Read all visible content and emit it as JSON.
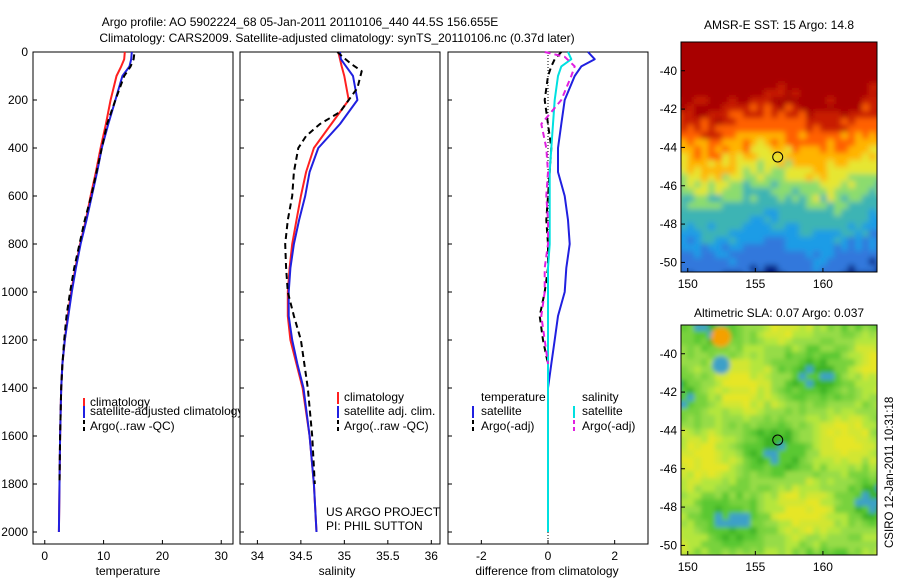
{
  "title_line1": "Argo profile: AO 5902224_68 05-Jan-2011 20110106_440 44.5S 156.655E",
  "title_line2": "Climatology: CARS2009. Satellite-adjusted climatology: synTS_20110106.nc (0.37d later)",
  "credit": "CSIRO 12-Jan-2011 10:31:18",
  "project_note": [
    "US ARGO PROJECT",
    "PI: PHIL SUTTON"
  ],
  "colors": {
    "climatology": "#ff2020",
    "satellite": "#2020e0",
    "argo": "#000000",
    "satellite_sal": "#00e0e0",
    "argo_sal": "#e020e0"
  },
  "chart_data": [
    {
      "type": "line",
      "xlabel": "temperature",
      "ylabel": "",
      "xlim": [
        -2,
        32
      ],
      "ylim": [
        2050,
        0
      ],
      "xticks": [
        0,
        10,
        20,
        30
      ],
      "yticks": [
        0,
        200,
        400,
        600,
        800,
        1000,
        1200,
        1400,
        1600,
        1800,
        2000
      ],
      "legend": [
        "climatology",
        "satellite-adjusted climatology",
        "Argo(..raw -QC)"
      ],
      "legend_position": "lower-right",
      "series": [
        {
          "name": "climatology",
          "color": "#ff2020",
          "style": "solid",
          "x": [
            13.6,
            13.5,
            13.0,
            12.2,
            11.2,
            10.4,
            9.5,
            8.7,
            7.8,
            7.0,
            6.0,
            5.2,
            4.5,
            3.9,
            3.4,
            3.0,
            2.8,
            2.6,
            2.5,
            2.4
          ],
          "y": [
            0,
            30,
            60,
            100,
            200,
            300,
            400,
            500,
            600,
            700,
            800,
            900,
            1000,
            1100,
            1200,
            1300,
            1400,
            1600,
            1800,
            2000
          ]
        },
        {
          "name": "satellite-adjusted climatology",
          "color": "#2020e0",
          "style": "solid",
          "x": [
            14.8,
            14.7,
            14.4,
            13.2,
            12.0,
            10.8,
            9.7,
            8.9,
            8.0,
            7.1,
            6.1,
            5.3,
            4.6,
            4.0,
            3.4,
            3.0,
            2.8,
            2.6,
            2.5,
            2.4
          ],
          "y": [
            0,
            30,
            60,
            100,
            200,
            300,
            400,
            500,
            600,
            700,
            800,
            900,
            1000,
            1100,
            1200,
            1300,
            1400,
            1600,
            1800,
            2000
          ]
        },
        {
          "name": "Argo(..raw -QC)",
          "color": "#000000",
          "style": "dashed",
          "x": [
            15.2,
            15.1,
            14.6,
            13.5,
            12.0,
            10.6,
            9.7,
            8.8,
            7.9,
            6.8,
            5.9,
            5.0,
            4.3,
            3.7,
            3.3,
            3.0,
            2.8,
            2.6,
            2.5
          ],
          "y": [
            10,
            30,
            60,
            100,
            200,
            300,
            400,
            500,
            600,
            700,
            800,
            900,
            1000,
            1100,
            1200,
            1300,
            1400,
            1600,
            1800
          ]
        }
      ]
    },
    {
      "type": "line",
      "xlabel": "salinity",
      "ylabel": "",
      "xlim": [
        33.8,
        36.1
      ],
      "ylim": [
        2050,
        0
      ],
      "xticks": [
        34,
        34.5,
        35,
        35.5,
        36
      ],
      "xtick_labels": [
        "34",
        "34.5",
        "35",
        "35.5",
        "36"
      ],
      "legend": [
        "climatology",
        "satellite adj. clim.",
        "Argo(..raw -QC)"
      ],
      "legend_position": "lower-right",
      "series": [
        {
          "name": "climatology",
          "color": "#ff2020",
          "style": "solid",
          "x": [
            34.93,
            34.95,
            34.97,
            35.0,
            35.05,
            34.85,
            34.65,
            34.56,
            34.5,
            34.45,
            34.4,
            34.37,
            34.35,
            34.35,
            34.38,
            34.45,
            34.52,
            34.6,
            34.65,
            34.68
          ],
          "y": [
            0,
            30,
            60,
            100,
            200,
            300,
            400,
            500,
            600,
            700,
            800,
            900,
            1000,
            1100,
            1200,
            1300,
            1400,
            1600,
            1800,
            2000
          ]
        },
        {
          "name": "satellite adj. clim.",
          "color": "#2020e0",
          "style": "solid",
          "x": [
            34.95,
            34.96,
            35.02,
            35.1,
            35.15,
            34.95,
            34.7,
            34.6,
            34.55,
            34.48,
            34.42,
            34.38,
            34.36,
            34.36,
            34.4,
            34.46,
            34.53,
            34.6,
            34.65,
            34.68
          ],
          "y": [
            0,
            30,
            60,
            100,
            200,
            300,
            400,
            500,
            600,
            700,
            800,
            900,
            1000,
            1100,
            1200,
            1300,
            1400,
            1600,
            1800,
            2000
          ]
        },
        {
          "name": "Argo(..raw -QC)",
          "color": "#000000",
          "style": "dashed",
          "x": [
            34.92,
            34.98,
            35.08,
            35.2,
            35.15,
            34.95,
            34.72,
            34.56,
            34.47,
            34.42,
            34.4,
            34.35,
            34.32,
            34.33,
            34.35,
            34.42,
            34.5,
            34.58,
            34.63,
            34.66
          ],
          "y": [
            0,
            20,
            50,
            80,
            150,
            250,
            300,
            350,
            400,
            500,
            600,
            700,
            800,
            900,
            1000,
            1100,
            1200,
            1400,
            1600,
            1800
          ]
        }
      ]
    },
    {
      "type": "line",
      "xlabel": "difference from climatology",
      "ylabel": "",
      "xlim": [
        -3,
        3
      ],
      "ylim": [
        2050,
        0
      ],
      "xticks": [
        -2,
        0,
        2
      ],
      "legend": [
        "temperature",
        "satellite",
        "Argo(-adj)",
        "salinity",
        "satellite",
        "Argo(-adj)"
      ],
      "legend_position": "lower-center",
      "series": [
        {
          "name": "satellite",
          "color": "#2020e0",
          "style": "solid",
          "x": [
            1.2,
            1.4,
            1.0,
            0.8,
            0.5,
            0.4,
            0.3,
            0.3,
            0.5,
            0.6,
            0.65,
            0.55,
            0.5,
            0.3,
            0.2,
            0.1,
            0.0,
            0.0,
            0.0,
            0.0
          ],
          "y": [
            0,
            30,
            60,
            100,
            200,
            300,
            400,
            500,
            600,
            700,
            800,
            900,
            1000,
            1100,
            1200,
            1300,
            1400,
            1600,
            1800,
            2000
          ]
        },
        {
          "name": "Argo(-adj)",
          "color": "#000000",
          "style": "dashed",
          "x": [
            0.4,
            0.2,
            0.1,
            0.0,
            -0.1,
            0.0,
            0.1,
            0.05,
            0.0,
            -0.05,
            0.0,
            0.0,
            -0.1,
            -0.25,
            -0.15,
            0.0
          ],
          "y": [
            0,
            30,
            60,
            100,
            200,
            300,
            400,
            500,
            600,
            700,
            800,
            900,
            1000,
            1100,
            1200,
            1300
          ]
        },
        {
          "name": "satellite",
          "color": "#00e0e0",
          "style": "solid",
          "x": [
            0.6,
            0.7,
            0.4,
            0.3,
            0.2,
            0.15,
            0.1,
            0.05,
            0.05,
            0.05,
            0.05,
            0.0,
            0.0,
            0.0,
            0.0,
            0.0,
            0.0,
            0.0,
            0.0,
            0.0
          ],
          "y": [
            0,
            30,
            60,
            100,
            200,
            300,
            400,
            500,
            600,
            700,
            800,
            900,
            1000,
            1100,
            1200,
            1300,
            1400,
            1600,
            1800,
            2000
          ]
        },
        {
          "name": "Argo(-adj)",
          "color": "#e020e0",
          "style": "dashed",
          "x": [
            -0.1,
            0.5,
            0.8,
            0.7,
            0.4,
            -0.2,
            -0.05,
            0.0,
            -0.05,
            0.0,
            0.0,
            -0.1,
            -0.1,
            -0.2,
            -0.1,
            0.0
          ],
          "y": [
            0,
            20,
            60,
            100,
            200,
            300,
            400,
            500,
            600,
            700,
            800,
            900,
            1000,
            1100,
            1200,
            1300
          ]
        }
      ]
    },
    {
      "type": "heatmap",
      "title": "AMSR-E SST: 15 Argo: 14.8",
      "xlim": [
        149.5,
        164
      ],
      "ylim": [
        -50.5,
        -38.5
      ],
      "xticks": [
        150,
        155,
        160
      ],
      "yticks": [
        -40,
        -42,
        -44,
        -46,
        -48,
        -50
      ],
      "colors_by_latitude": [
        [
          -40,
          "#a80000"
        ],
        [
          -41.5,
          "#c81e00"
        ],
        [
          -42.5,
          "#ff6000"
        ],
        [
          -43.5,
          "#ffb400"
        ],
        [
          -44.5,
          "#e6e632"
        ],
        [
          -45.5,
          "#8cdc6e"
        ],
        [
          -46.5,
          "#3cb4b4"
        ],
        [
          -48,
          "#1e9ce6"
        ],
        [
          -49,
          "#3078dc"
        ],
        [
          -50.5,
          "#001e82"
        ]
      ],
      "marker": {
        "lon": 156.655,
        "lat": -44.5
      }
    },
    {
      "type": "heatmap",
      "title": "Altimetric SLA: 0.07 Argo: 0.037",
      "xlim": [
        149.5,
        164
      ],
      "ylim": [
        -50.5,
        -38.5
      ],
      "xticks": [
        150,
        155,
        160
      ],
      "yticks": [
        -40,
        -42,
        -44,
        -46,
        -48,
        -50
      ],
      "marker": {
        "lon": 156.655,
        "lat": -44.5
      }
    }
  ]
}
